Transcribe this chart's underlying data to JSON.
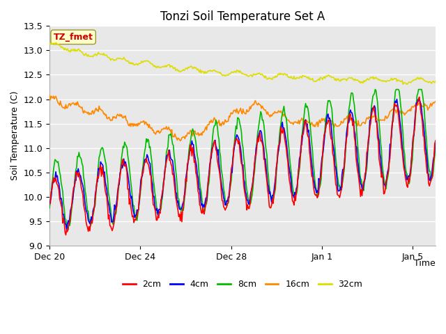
{
  "title": "Tonzi Soil Temperature Set A",
  "xlabel": "Time",
  "ylabel": "Soil Temperature (C)",
  "annotation": "TZ_fmet",
  "ylim": [
    9.0,
    13.5
  ],
  "legend_labels": [
    "2cm",
    "4cm",
    "8cm",
    "16cm",
    "32cm"
  ],
  "colors": {
    "2cm": "#ff0000",
    "4cm": "#0000ff",
    "8cm": "#00bb00",
    "16cm": "#ff8800",
    "32cm": "#dddd00"
  },
  "background_color": "#ffffff",
  "plot_bg_color": "#e8e8e8",
  "grid_color": "#ffffff",
  "yticks": [
    9.0,
    9.5,
    10.0,
    10.5,
    11.0,
    11.5,
    12.0,
    12.5,
    13.0,
    13.5
  ],
  "xtick_labels": [
    "Dec 20",
    "Dec 24",
    "Dec 28",
    "Jan 1",
    "Jan 5"
  ],
  "xtick_pos": [
    0,
    4,
    8,
    12,
    16
  ],
  "xlim": [
    0,
    17
  ],
  "title_fontsize": 12,
  "axis_label_fontsize": 9,
  "tick_fontsize": 9,
  "legend_fontsize": 9,
  "annotation_fontsize": 9
}
